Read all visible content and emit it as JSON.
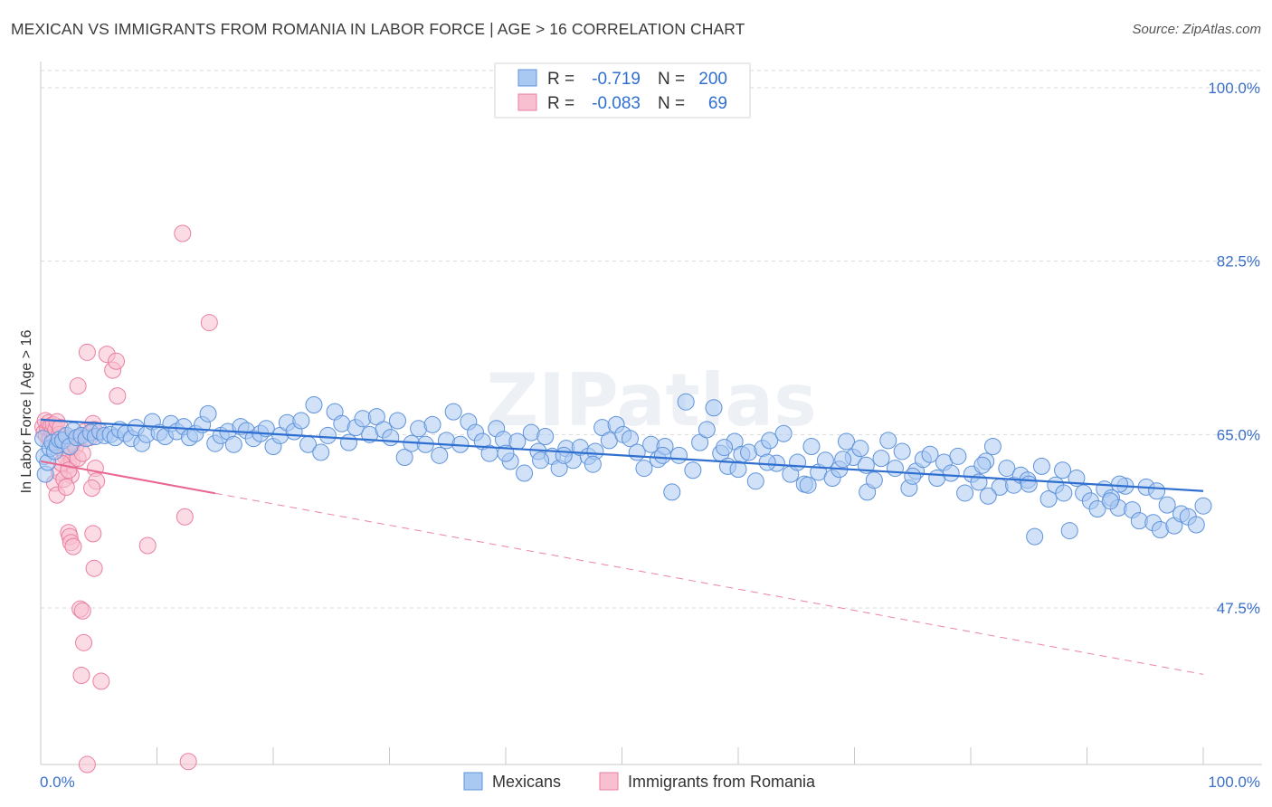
{
  "title": "MEXICAN VS IMMIGRANTS FROM ROMANIA IN LABOR FORCE | AGE > 16 CORRELATION CHART",
  "source": "Source: ZipAtlas.com",
  "watermark": "ZIPatlas",
  "colors": {
    "mexicans_fill": "#a9c8f2",
    "mexicans_stroke": "#5f93da",
    "mexicans_line": "#2f6fd0",
    "romania_fill": "#f7bfd0",
    "romania_stroke": "#ea7fa1",
    "romania_line": "#e8668f",
    "tick_text": "#3a6fc9",
    "grid": "#d9d9d9"
  },
  "legend": {
    "rows": [
      {
        "r_label": "R =",
        "r_value": "-0.719",
        "n_label": "N =",
        "n_value": "200"
      },
      {
        "r_label": "R =",
        "r_value": "-0.083",
        "n_label": "N =",
        "n_value": "69"
      }
    ]
  },
  "bottom_legend": [
    "Mexicans",
    "Immigrants from Romania"
  ],
  "chart_data": {
    "type": "scatter",
    "title": "MEXICAN VS IMMIGRANTS FROM ROMANIA IN LABOR FORCE | AGE > 16 CORRELATION CHART",
    "xlabel": "",
    "ylabel": "In Labor Force | Age > 16",
    "xlim": [
      0,
      100
    ],
    "ylim": [
      32,
      102
    ],
    "x_tick_labels": [
      "0.0%",
      "100.0%"
    ],
    "y_ticks": [
      47.5,
      65.0,
      82.5,
      100.0
    ],
    "y_tick_labels": [
      "47.5%",
      "65.0%",
      "82.5%",
      "100.0%"
    ],
    "grid": true,
    "legend_position": "top-center",
    "series": [
      {
        "name": "Mexicans",
        "r": -0.719,
        "n": 200,
        "trend": {
          "x": [
            0,
            100
          ],
          "y": [
            66.5,
            59.3
          ]
        },
        "points": [
          [
            0.2,
            64.6
          ],
          [
            0.3,
            62.8
          ],
          [
            0.4,
            61.0
          ],
          [
            0.6,
            62.2
          ],
          [
            0.8,
            63.6
          ],
          [
            1.0,
            64.2
          ],
          [
            1.2,
            63.3
          ],
          [
            1.4,
            63.9
          ],
          [
            1.6,
            64.5
          ],
          [
            1.9,
            64.4
          ],
          [
            2.2,
            64.9
          ],
          [
            2.5,
            63.8
          ],
          [
            2.8,
            65.4
          ],
          [
            3.1,
            64.7
          ],
          [
            3.5,
            64.9
          ],
          [
            3.9,
            64.6
          ],
          [
            4.3,
            65.2
          ],
          [
            4.7,
            64.8
          ],
          [
            5.1,
            65.3
          ],
          [
            5.5,
            64.9
          ],
          [
            6.0,
            65.0
          ],
          [
            6.4,
            64.7
          ],
          [
            6.8,
            65.5
          ],
          [
            7.3,
            65.1
          ],
          [
            7.8,
            64.6
          ],
          [
            8.2,
            65.7
          ],
          [
            8.7,
            64.1
          ],
          [
            9.1,
            65.0
          ],
          [
            9.6,
            66.3
          ],
          [
            10.2,
            65.2
          ],
          [
            10.7,
            64.8
          ],
          [
            11.2,
            66.1
          ],
          [
            11.7,
            65.3
          ],
          [
            12.3,
            65.8
          ],
          [
            12.8,
            64.7
          ],
          [
            13.3,
            65.1
          ],
          [
            13.9,
            66.0
          ],
          [
            14.4,
            67.1
          ],
          [
            15.0,
            64.1
          ],
          [
            15.5,
            64.9
          ],
          [
            16.1,
            65.3
          ],
          [
            16.6,
            64.0
          ],
          [
            17.2,
            65.8
          ],
          [
            17.7,
            65.4
          ],
          [
            18.3,
            64.6
          ],
          [
            18.9,
            65.1
          ],
          [
            19.4,
            65.6
          ],
          [
            20.0,
            63.8
          ],
          [
            20.6,
            64.9
          ],
          [
            21.2,
            66.2
          ],
          [
            21.8,
            65.3
          ],
          [
            22.4,
            66.4
          ],
          [
            23.0,
            64.0
          ],
          [
            23.5,
            68.0
          ],
          [
            24.1,
            63.2
          ],
          [
            24.7,
            64.9
          ],
          [
            25.3,
            67.3
          ],
          [
            25.9,
            66.1
          ],
          [
            26.5,
            64.2
          ],
          [
            27.1,
            65.7
          ],
          [
            27.7,
            66.6
          ],
          [
            28.3,
            65.0
          ],
          [
            28.9,
            66.8
          ],
          [
            29.5,
            65.5
          ],
          [
            30.1,
            64.7
          ],
          [
            30.7,
            66.4
          ],
          [
            31.3,
            62.7
          ],
          [
            31.9,
            64.1
          ],
          [
            32.5,
            65.6
          ],
          [
            33.1,
            64.0
          ],
          [
            33.7,
            66.0
          ],
          [
            34.3,
            62.9
          ],
          [
            34.9,
            64.4
          ],
          [
            35.5,
            67.3
          ],
          [
            36.1,
            64.0
          ],
          [
            36.8,
            66.3
          ],
          [
            37.4,
            65.2
          ],
          [
            38.0,
            64.3
          ],
          [
            38.6,
            63.1
          ],
          [
            39.2,
            65.6
          ],
          [
            39.8,
            64.5
          ],
          [
            40.4,
            62.3
          ],
          [
            41.0,
            64.3
          ],
          [
            41.6,
            61.1
          ],
          [
            42.2,
            65.2
          ],
          [
            42.8,
            63.3
          ],
          [
            43.4,
            64.8
          ],
          [
            44.0,
            62.8
          ],
          [
            44.6,
            61.6
          ],
          [
            45.2,
            63.6
          ],
          [
            45.8,
            62.4
          ],
          [
            46.4,
            63.7
          ],
          [
            47.1,
            62.8
          ],
          [
            47.7,
            63.3
          ],
          [
            48.3,
            65.7
          ],
          [
            48.9,
            64.4
          ],
          [
            49.5,
            66.0
          ],
          [
            50.1,
            65.0
          ],
          [
            50.7,
            64.6
          ],
          [
            51.3,
            63.2
          ],
          [
            51.9,
            61.6
          ],
          [
            52.5,
            64.0
          ],
          [
            53.1,
            62.5
          ],
          [
            53.7,
            63.8
          ],
          [
            54.3,
            59.2
          ],
          [
            54.9,
            62.9
          ],
          [
            55.5,
            68.3
          ],
          [
            56.1,
            61.4
          ],
          [
            56.7,
            64.2
          ],
          [
            57.3,
            65.5
          ],
          [
            57.9,
            67.7
          ],
          [
            58.5,
            63.1
          ],
          [
            59.1,
            61.8
          ],
          [
            59.7,
            64.3
          ],
          [
            60.3,
            63.0
          ],
          [
            60.9,
            63.2
          ],
          [
            61.5,
            60.3
          ],
          [
            62.1,
            63.6
          ],
          [
            62.7,
            64.4
          ],
          [
            63.3,
            62.1
          ],
          [
            63.9,
            65.1
          ],
          [
            64.5,
            61.0
          ],
          [
            65.1,
            62.2
          ],
          [
            65.7,
            60.0
          ],
          [
            66.3,
            63.8
          ],
          [
            66.9,
            61.2
          ],
          [
            67.5,
            62.4
          ],
          [
            68.1,
            60.6
          ],
          [
            68.7,
            61.5
          ],
          [
            69.3,
            64.3
          ],
          [
            69.9,
            62.7
          ],
          [
            70.5,
            63.6
          ],
          [
            71.1,
            59.2
          ],
          [
            71.7,
            60.4
          ],
          [
            72.3,
            62.6
          ],
          [
            72.9,
            64.4
          ],
          [
            73.5,
            61.6
          ],
          [
            74.1,
            63.3
          ],
          [
            74.7,
            59.6
          ],
          [
            75.3,
            61.3
          ],
          [
            75.9,
            62.5
          ],
          [
            76.5,
            63.0
          ],
          [
            77.1,
            60.6
          ],
          [
            77.7,
            62.2
          ],
          [
            78.3,
            61.1
          ],
          [
            78.9,
            62.8
          ],
          [
            79.5,
            59.1
          ],
          [
            80.1,
            61.0
          ],
          [
            80.7,
            60.2
          ],
          [
            81.3,
            62.3
          ],
          [
            81.9,
            63.8
          ],
          [
            82.5,
            59.7
          ],
          [
            83.1,
            61.6
          ],
          [
            83.7,
            59.9
          ],
          [
            84.3,
            60.9
          ],
          [
            84.9,
            60.4
          ],
          [
            85.5,
            54.7
          ],
          [
            86.1,
            61.8
          ],
          [
            86.7,
            58.5
          ],
          [
            87.3,
            59.9
          ],
          [
            87.9,
            61.4
          ],
          [
            88.5,
            55.3
          ],
          [
            89.1,
            60.6
          ],
          [
            89.7,
            59.1
          ],
          [
            90.3,
            58.3
          ],
          [
            90.9,
            57.5
          ],
          [
            91.5,
            59.5
          ],
          [
            92.1,
            58.6
          ],
          [
            92.7,
            57.6
          ],
          [
            93.3,
            59.8
          ],
          [
            93.9,
            57.4
          ],
          [
            94.5,
            56.3
          ],
          [
            95.1,
            59.7
          ],
          [
            95.7,
            56.1
          ],
          [
            96.3,
            55.4
          ],
          [
            96.9,
            57.9
          ],
          [
            97.5,
            55.8
          ],
          [
            98.1,
            57.0
          ],
          [
            98.7,
            56.7
          ],
          [
            99.4,
            55.9
          ],
          [
            100.0,
            57.8
          ],
          [
            58.8,
            63.7
          ],
          [
            60.0,
            61.5
          ],
          [
            66.0,
            59.9
          ],
          [
            53.5,
            62.9
          ],
          [
            47.5,
            62.0
          ],
          [
            69.0,
            62.5
          ],
          [
            75.0,
            60.8
          ],
          [
            81.0,
            61.9
          ],
          [
            88.0,
            59.1
          ],
          [
            92.0,
            58.3
          ],
          [
            96.0,
            59.3
          ],
          [
            45.0,
            62.9
          ],
          [
            43.0,
            62.4
          ],
          [
            40.0,
            63.1
          ],
          [
            85.0,
            60.0
          ],
          [
            81.5,
            58.8
          ],
          [
            71.0,
            61.9
          ],
          [
            62.5,
            62.2
          ],
          [
            92.8,
            60.0
          ]
        ]
      },
      {
        "name": "Immigrants from Romania",
        "r": -0.083,
        "n": 69,
        "trend": {
          "x": [
            0,
            100
          ],
          "y": [
            62.3,
            40.8
          ]
        },
        "points": [
          [
            0.2,
            65.8
          ],
          [
            0.3,
            65.2
          ],
          [
            0.4,
            66.4
          ],
          [
            0.5,
            64.9
          ],
          [
            0.6,
            65.6
          ],
          [
            0.7,
            66.2
          ],
          [
            0.8,
            64.6
          ],
          [
            0.9,
            65.9
          ],
          [
            1.0,
            65.3
          ],
          [
            1.1,
            66.0
          ],
          [
            1.2,
            64.8
          ],
          [
            1.3,
            65.5
          ],
          [
            1.4,
            66.3
          ],
          [
            1.5,
            64.3
          ],
          [
            1.6,
            65.0
          ],
          [
            1.7,
            65.7
          ],
          [
            1.8,
            64.1
          ],
          [
            1.9,
            63.4
          ],
          [
            2.0,
            64.4
          ],
          [
            2.1,
            62.8
          ],
          [
            2.2,
            63.9
          ],
          [
            2.3,
            64.6
          ],
          [
            2.4,
            61.9
          ],
          [
            2.5,
            63.2
          ],
          [
            2.6,
            60.9
          ],
          [
            2.7,
            62.4
          ],
          [
            1.2,
            60.1
          ],
          [
            1.4,
            58.9
          ],
          [
            1.6,
            61.2
          ],
          [
            1.8,
            62.1
          ],
          [
            2.0,
            60.5
          ],
          [
            2.2,
            59.7
          ],
          [
            2.4,
            61.4
          ],
          [
            2.6,
            63.7
          ],
          [
            2.8,
            64.2
          ],
          [
            3.0,
            63.8
          ],
          [
            3.2,
            62.6
          ],
          [
            3.4,
            64.8
          ],
          [
            3.6,
            63.1
          ],
          [
            3.8,
            65.3
          ],
          [
            4.2,
            64.7
          ],
          [
            4.5,
            66.1
          ],
          [
            4.6,
            65.5
          ],
          [
            4.7,
            61.6
          ],
          [
            4.8,
            60.3
          ],
          [
            4.4,
            59.6
          ],
          [
            2.4,
            55.1
          ],
          [
            2.5,
            54.7
          ],
          [
            2.6,
            54.1
          ],
          [
            2.8,
            53.7
          ],
          [
            4.5,
            55.0
          ],
          [
            4.6,
            51.5
          ],
          [
            3.4,
            47.4
          ],
          [
            3.6,
            47.2
          ],
          [
            3.7,
            44.0
          ],
          [
            3.5,
            40.7
          ],
          [
            5.2,
            40.1
          ],
          [
            4.0,
            31.7
          ],
          [
            12.7,
            32.0
          ],
          [
            4.0,
            73.3
          ],
          [
            5.7,
            73.1
          ],
          [
            6.2,
            71.5
          ],
          [
            6.5,
            72.4
          ],
          [
            3.2,
            69.9
          ],
          [
            6.6,
            68.9
          ],
          [
            12.2,
            85.3
          ],
          [
            14.5,
            76.3
          ],
          [
            12.4,
            56.7
          ],
          [
            9.2,
            53.8
          ]
        ]
      }
    ]
  }
}
